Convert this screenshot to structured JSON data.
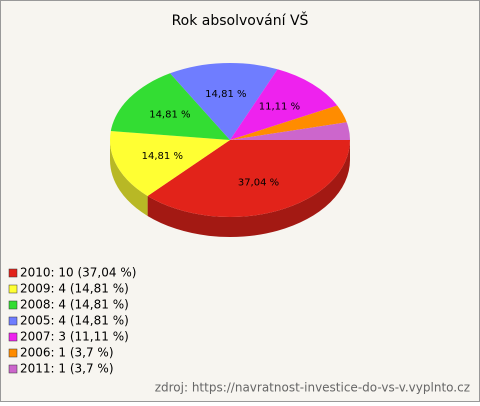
{
  "chart_data": {
    "type": "pie3d",
    "title": "Rok absolvování VŠ",
    "values": [
      37.04,
      14.81,
      14.81,
      14.81,
      11.11,
      3.7,
      3.7
    ],
    "value_labels": [
      "37,04 %",
      "14,81 %",
      "14,81 %",
      "14,81 %",
      "11,11 %",
      null,
      null
    ],
    "legend_labels": [
      "2010: 10 (37,04 %)",
      "2009: 4 (14,81 %)",
      "2008: 4 (14,81 %)",
      "2005: 4 (14,81 %)",
      "2007: 3 (11,11 %)",
      "2006: 1 (3,7 %)",
      "2011: 1 (3,7 %)"
    ],
    "colors": [
      "#e2231a",
      "#ffff33",
      "#33dd33",
      "#6f7dff",
      "#ee22ee",
      "#ff8c00",
      "#cc66cc"
    ],
    "source": "zdroj: https://navratnost-investice-do-vs-v.vyplnto.cz"
  }
}
